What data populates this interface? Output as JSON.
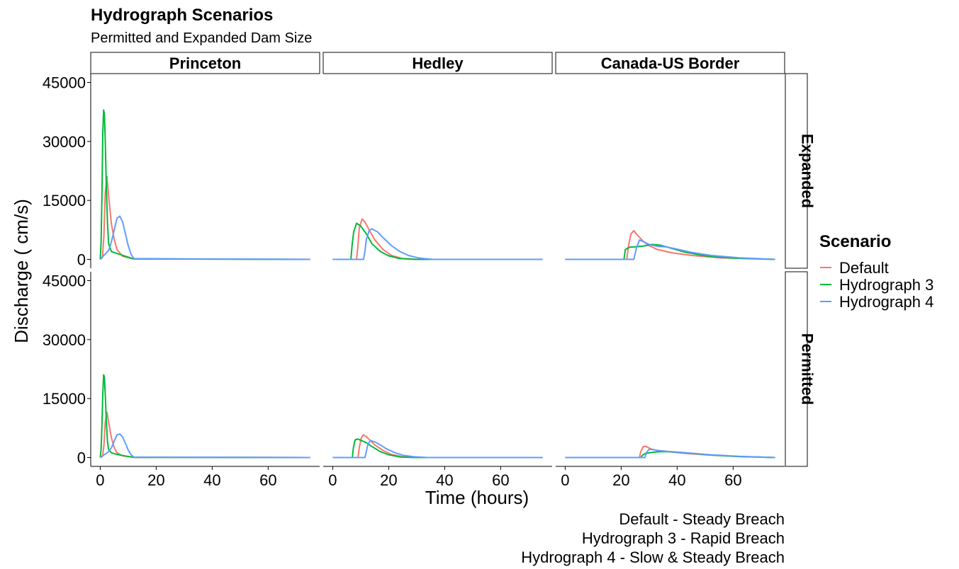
{
  "chart_data": {
    "type": "line",
    "title": "Hydrograph Scenarios",
    "subtitle": "Permitted and Expanded Dam Size",
    "xlabel": "Time (hours)",
    "ylabel": "Discharge ( cm/s)",
    "xlim": [
      0,
      75
    ],
    "ylim": [
      0,
      45000
    ],
    "x_ticks": [
      0,
      20,
      40,
      60
    ],
    "y_ticks": [
      0,
      15000,
      30000,
      45000
    ],
    "columns": [
      "Princeton",
      "Hedley",
      "Canada-US Border"
    ],
    "rows": [
      "Expanded",
      "Permitted"
    ],
    "legend": {
      "title": "Scenario",
      "position": "right",
      "entries": [
        {
          "name": "Default",
          "color": "#F8766D"
        },
        {
          "name": "Hydrograph 3",
          "color": "#00BA38"
        },
        {
          "name": "Hydrograph 4",
          "color": "#619CFF"
        }
      ]
    },
    "caption": [
      "Default - Steady Breach",
      "Hydrograph 3 - Rapid Breach",
      "Hydrograph 4 - Slow & Steady Breach"
    ],
    "grid": false,
    "panels": [
      {
        "column": "Princeton",
        "row": "Expanded",
        "series": [
          {
            "name": "Default",
            "x": [
              0,
              0.8,
              1.3,
              1.8,
              2.4,
              3,
              4,
              5,
              6,
              8,
              12,
              75
            ],
            "y": [
              0,
              500,
              6000,
              17000,
              21000,
              16000,
              9000,
              5000,
              2500,
              800,
              100,
              0
            ]
          },
          {
            "name": "Hydrograph 3",
            "x": [
              0,
              0.3,
              0.6,
              0.9,
              1.2,
              1.5,
              1.8,
              2.2,
              2.6,
              3,
              4,
              6,
              9,
              12,
              75
            ],
            "y": [
              0,
              4000,
              16000,
              32000,
              38000,
              37000,
              30000,
              18000,
              9000,
              4000,
              2000,
              1500,
              800,
              100,
              0
            ]
          },
          {
            "name": "Hydrograph 4",
            "x": [
              0,
              1,
              2,
              3,
              4,
              5,
              6,
              7,
              8,
              9,
              10,
              11,
              12,
              75
            ],
            "y": [
              0,
              800,
              1500,
              2300,
              4500,
              7500,
              10500,
              11000,
              9500,
              6500,
              3500,
              1300,
              200,
              0
            ]
          }
        ]
      },
      {
        "column": "Hedley",
        "row": "Expanded",
        "series": [
          {
            "name": "Default",
            "x": [
              0,
              8.5,
              9,
              9.5,
              10.5,
              11.5,
              13,
              15,
              18,
              21,
              25,
              30,
              75
            ],
            "y": [
              0,
              0,
              3500,
              8000,
              10300,
              9500,
              7500,
              5000,
              2500,
              1000,
              200,
              0,
              0
            ]
          },
          {
            "name": "Hydrograph 3",
            "x": [
              0,
              6.5,
              6.9,
              7.5,
              8.5,
              10,
              12,
              14,
              17,
              20,
              24,
              30,
              75
            ],
            "y": [
              0,
              0,
              3500,
              7000,
              9200,
              8500,
              6500,
              4000,
              2000,
              900,
              200,
              0,
              0
            ]
          },
          {
            "name": "Hydrograph 4",
            "x": [
              0,
              11,
              11.5,
              12,
              13,
              14,
              16,
              18,
              21,
              24,
              27,
              31,
              36,
              75
            ],
            "y": [
              0,
              0,
              2000,
              5000,
              7300,
              7800,
              7000,
              5500,
              3500,
              2000,
              1000,
              300,
              0,
              0
            ]
          }
        ]
      },
      {
        "column": "Canada-US Border",
        "row": "Expanded",
        "series": [
          {
            "name": "Default",
            "x": [
              0,
              22,
              22.5,
              23.5,
              24.5,
              26,
              28,
              30,
              33,
              38,
              45,
              55,
              75
            ],
            "y": [
              0,
              0,
              3000,
              6500,
              7300,
              6000,
              4500,
              3500,
              2500,
              1700,
              1000,
              400,
              0
            ]
          },
          {
            "name": "Hydrograph 3",
            "x": [
              0,
              21,
              21.5,
              23,
              25,
              28,
              31,
              34,
              38,
              43,
              50,
              60,
              75
            ],
            "y": [
              0,
              0,
              2500,
              3100,
              3200,
              3400,
              3800,
              3600,
              2800,
              1800,
              900,
              300,
              0
            ]
          },
          {
            "name": "Hydrograph 4",
            "x": [
              0,
              24.5,
              25.5,
              26.5,
              28,
              30,
              33,
              36,
              40,
              45,
              52,
              62,
              75
            ],
            "y": [
              0,
              0,
              3000,
              4900,
              4500,
              3800,
              3300,
              3200,
              2600,
              1800,
              1000,
              400,
              0
            ]
          }
        ]
      },
      {
        "column": "Princeton",
        "row": "Permitted",
        "series": [
          {
            "name": "Default",
            "x": [
              0,
              0.8,
              1.3,
              1.8,
              2.4,
              3,
              4,
              5,
              6,
              8,
              12,
              75
            ],
            "y": [
              0,
              300,
              3000,
              9000,
              11500,
              9000,
              5000,
              2500,
              1200,
              400,
              50,
              0
            ]
          },
          {
            "name": "Hydrograph 3",
            "x": [
              0,
              0.3,
              0.6,
              0.9,
              1.2,
              1.5,
              1.8,
              2.2,
              2.6,
              3,
              4,
              6,
              9,
              12,
              75
            ],
            "y": [
              0,
              2000,
              8000,
              16000,
              21000,
              20500,
              16000,
              9000,
              4000,
              2000,
              1200,
              800,
              400,
              50,
              0
            ]
          },
          {
            "name": "Hydrograph 4",
            "x": [
              0,
              1,
              2,
              3,
              4,
              5,
              6,
              7,
              8,
              9,
              10,
              11,
              12,
              75
            ],
            "y": [
              0,
              500,
              1000,
              1500,
              2500,
              4200,
              5800,
              6000,
              5200,
              3600,
              1900,
              700,
              100,
              0
            ]
          }
        ]
      },
      {
        "column": "Hedley",
        "row": "Permitted",
        "series": [
          {
            "name": "Default",
            "x": [
              0,
              9,
              9.5,
              10.2,
              11,
              12,
              13.5,
              15,
              18,
              21,
              25,
              30,
              75
            ],
            "y": [
              0,
              0,
              2500,
              5000,
              5800,
              5300,
              4300,
              3200,
              1800,
              800,
              200,
              0,
              0
            ]
          },
          {
            "name": "Hydrograph 3",
            "x": [
              0,
              7,
              7.4,
              8,
              9,
              10,
              12,
              14,
              17,
              20,
              24,
              30,
              75
            ],
            "y": [
              0,
              0,
              2500,
              4500,
              4700,
              4400,
              3800,
              2800,
              1500,
              700,
              150,
              0,
              0
            ]
          },
          {
            "name": "Hydrograph 4",
            "x": [
              0,
              11.5,
              12,
              12.6,
              13.5,
              15,
              17,
              19,
              22,
              25,
              29,
              34,
              75
            ],
            "y": [
              0,
              0,
              1500,
              3500,
              4300,
              4000,
              3200,
              2300,
              1300,
              600,
              200,
              0,
              0
            ]
          }
        ]
      },
      {
        "column": "Canada-US Border",
        "row": "Permitted",
        "series": [
          {
            "name": "Default",
            "x": [
              0,
              26.5,
              27,
              27.8,
              28.6,
              29.5,
              31,
              33,
              37,
              42,
              50,
              60,
              75
            ],
            "y": [
              0,
              0,
              1500,
              2700,
              2900,
              2600,
              2100,
              1800,
              1500,
              1100,
              700,
              300,
              0
            ]
          },
          {
            "name": "Hydrograph 3",
            "x": [
              0,
              27,
              27.5,
              28.5,
              30,
              32,
              34,
              37,
              41,
              46,
              53,
              62,
              75
            ],
            "y": [
              0,
              0,
              500,
              1000,
              1200,
              1400,
              1500,
              1500,
              1300,
              1000,
              600,
              250,
              0
            ]
          },
          {
            "name": "Hydrograph 4",
            "x": [
              0,
              28.5,
              29,
              30,
              31.5,
              33,
              36,
              40,
              45,
              52,
              62,
              75
            ],
            "y": [
              0,
              0,
              1200,
              2100,
              2000,
              1800,
              1600,
              1400,
              1100,
              700,
              300,
              0
            ]
          }
        ]
      }
    ]
  }
}
